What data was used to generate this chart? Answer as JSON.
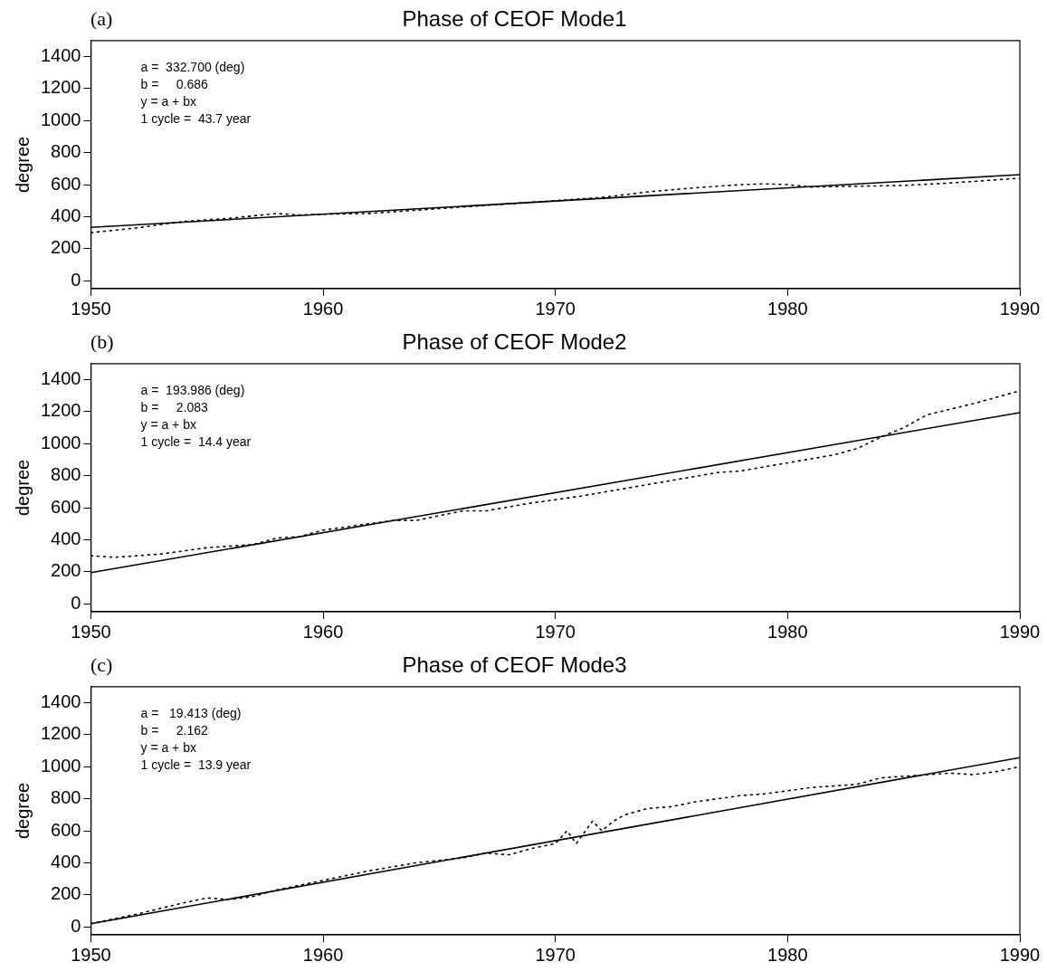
{
  "chart_data": [
    {
      "type": "line",
      "title": "Phase of CEOF Mode1",
      "ylabel": "degree",
      "annotations": [
        "(a)",
        "a =  332.700 (deg)",
        "b =     0.686",
        "y = a + bx",
        "1 cycle =  43.7 year"
      ],
      "xlim": [
        1950,
        1990
      ],
      "xticks": [
        1950,
        1960,
        1970,
        1980,
        1990
      ],
      "ylim": [
        -50,
        1500
      ],
      "yticks": [
        0,
        200,
        400,
        600,
        800,
        1000,
        1200,
        1400
      ],
      "grid": false,
      "legend": false,
      "marker": "none",
      "series": [
        {
          "type": "line",
          "color": "#000000",
          "line_style": "dotted",
          "x": [
            1950,
            1952,
            1954,
            1956,
            1958,
            1959,
            1960,
            1962,
            1964,
            1966,
            1968,
            1970,
            1972,
            1974,
            1976,
            1978,
            1979,
            1980,
            1981,
            1983,
            1985,
            1987,
            1989,
            1990
          ],
          "values": [
            300,
            330,
            370,
            390,
            420,
            410,
            415,
            420,
            440,
            460,
            480,
            500,
            520,
            555,
            580,
            600,
            605,
            600,
            585,
            590,
            595,
            610,
            630,
            640
          ]
        },
        {
          "type": "line",
          "color": "#000000",
          "line_style": "solid",
          "x": [
            1950,
            1990
          ],
          "values": [
            333,
            662
          ]
        }
      ]
    },
    {
      "type": "line",
      "title": "Phase of CEOF Mode2",
      "ylabel": "degree",
      "annotations": [
        "(b)",
        "a =  193.986 (deg)",
        "b =     2.083",
        "y = a + bx",
        "1 cycle =  14.4 year"
      ],
      "xlim": [
        1950,
        1990
      ],
      "xticks": [
        1950,
        1960,
        1970,
        1980,
        1990
      ],
      "ylim": [
        -50,
        1500
      ],
      "yticks": [
        0,
        200,
        400,
        600,
        800,
        1000,
        1200,
        1400
      ],
      "grid": false,
      "legend": false,
      "marker": "none",
      "series": [
        {
          "type": "line",
          "color": "#000000",
          "line_style": "dotted",
          "x": [
            1950,
            1951,
            1953,
            1955,
            1957,
            1958,
            1959,
            1960,
            1961,
            1962,
            1963,
            1964,
            1965,
            1966,
            1967,
            1969,
            1971,
            1973,
            1975,
            1977,
            1978,
            1980,
            1982,
            1983,
            1984,
            1985,
            1986,
            1988,
            1990
          ],
          "values": [
            300,
            290,
            310,
            350,
            370,
            410,
            420,
            460,
            480,
            500,
            520,
            520,
            550,
            580,
            580,
            630,
            670,
            720,
            770,
            820,
            830,
            880,
            930,
            970,
            1040,
            1100,
            1180,
            1250,
            1330
          ]
        },
        {
          "type": "line",
          "color": "#000000",
          "line_style": "solid",
          "x": [
            1950,
            1990
          ],
          "values": [
            194,
            1194
          ]
        }
      ]
    },
    {
      "type": "line",
      "title": "Phase of CEOF Mode3",
      "ylabel": "degree",
      "annotations": [
        "(c)",
        "a =   19.413 (deg)",
        "b =     2.162",
        "y = a + bx",
        "1 cycle =  13.9 year"
      ],
      "xlim": [
        1950,
        1990
      ],
      "xticks": [
        1950,
        1960,
        1970,
        1980,
        1990
      ],
      "ylim": [
        -50,
        1500
      ],
      "yticks": [
        0,
        200,
        400,
        600,
        800,
        1000,
        1200,
        1400
      ],
      "grid": false,
      "legend": false,
      "marker": "none",
      "series": [
        {
          "type": "line",
          "color": "#000000",
          "line_style": "dotted",
          "x": [
            1950,
            1952,
            1954,
            1955,
            1956,
            1957,
            1958,
            1960,
            1962,
            1964,
            1966,
            1967,
            1968,
            1969,
            1970,
            1970.5,
            1970.9,
            1971.3,
            1971.6,
            1972,
            1972.5,
            1973,
            1974,
            1975,
            1976,
            1978,
            1979,
            1980,
            1981,
            1983,
            1984,
            1985,
            1986,
            1987,
            1988,
            1989,
            1990
          ],
          "values": [
            20,
            80,
            150,
            180,
            170,
            190,
            230,
            290,
            350,
            400,
            430,
            460,
            450,
            490,
            520,
            600,
            520,
            600,
            660,
            600,
            660,
            700,
            740,
            750,
            780,
            820,
            830,
            850,
            870,
            890,
            930,
            940,
            950,
            960,
            950,
            970,
            1000
          ]
        },
        {
          "type": "line",
          "color": "#000000",
          "line_style": "solid",
          "x": [
            1950,
            1990
          ],
          "values": [
            19,
            1057
          ]
        }
      ]
    }
  ]
}
